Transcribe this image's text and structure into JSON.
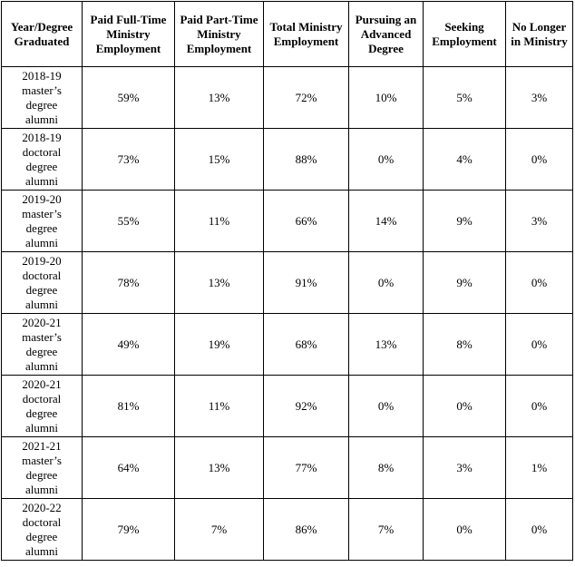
{
  "table": {
    "header": [
      "Year/Degree Graduated",
      "Paid Full-Time Ministry Employment",
      "Paid Part-Time Ministry Employment",
      "Total Ministry Employment",
      "Pursuing an Advanced Degree",
      "Seeking Employment",
      "No Longer in Ministry"
    ],
    "rows": [
      [
        "2018-19 master’s degree alumni",
        "59%",
        "13%",
        "72%",
        "10%",
        "5%",
        "3%"
      ],
      [
        "2018-19 doctoral degree alumni",
        "73%",
        "15%",
        "88%",
        "0%",
        "4%",
        "0%"
      ],
      [
        "2019-20 master’s degree alumni",
        "55%",
        "11%",
        "66%",
        "14%",
        "9%",
        "3%"
      ],
      [
        "2019-20 doctoral degree alumni",
        "78%",
        "13%",
        "91%",
        "0%",
        "9%",
        "0%"
      ],
      [
        "2020-21 master’s degree alumni",
        "49%",
        "19%",
        "68%",
        "13%",
        "8%",
        "0%"
      ],
      [
        "2020-21 doctoral degree alumni",
        "81%",
        "11%",
        "92%",
        "0%",
        "0%",
        "0%"
      ],
      [
        "2021-21 master’s degree alumni",
        "64%",
        "13%",
        "77%",
        "8%",
        "3%",
        "1%"
      ],
      [
        "2020-22 doctoral degree alumni",
        "79%",
        "7%",
        "86%",
        "7%",
        "0%",
        "0%"
      ]
    ]
  }
}
